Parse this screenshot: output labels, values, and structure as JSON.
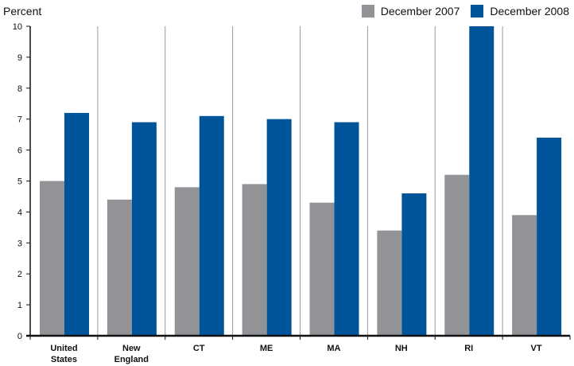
{
  "chart_data": {
    "type": "bar",
    "ylabel": "Percent",
    "xlabel": "",
    "ylim": [
      0,
      10
    ],
    "yticks": [
      0,
      1,
      2,
      3,
      4,
      5,
      6,
      7,
      8,
      9,
      10
    ],
    "categories": [
      "United States",
      "New England",
      "CT",
      "ME",
      "MA",
      "NH",
      "RI",
      "VT"
    ],
    "category_label_lines": [
      [
        "United",
        "States"
      ],
      [
        "New",
        "England"
      ],
      [
        "CT"
      ],
      [
        "ME"
      ],
      [
        "MA"
      ],
      [
        "NH"
      ],
      [
        "RI"
      ],
      [
        "VT"
      ]
    ],
    "series": [
      {
        "name": "December 2007",
        "color": "#929396",
        "values": [
          5.0,
          4.4,
          4.8,
          4.9,
          4.3,
          3.4,
          5.2,
          3.9
        ]
      },
      {
        "name": "December 2008",
        "color": "#00559a",
        "values": [
          7.2,
          6.9,
          7.1,
          7.0,
          6.9,
          4.6,
          10.0,
          6.4
        ]
      }
    ],
    "grid": false,
    "category_separators": true,
    "legend_position": "top-right"
  }
}
